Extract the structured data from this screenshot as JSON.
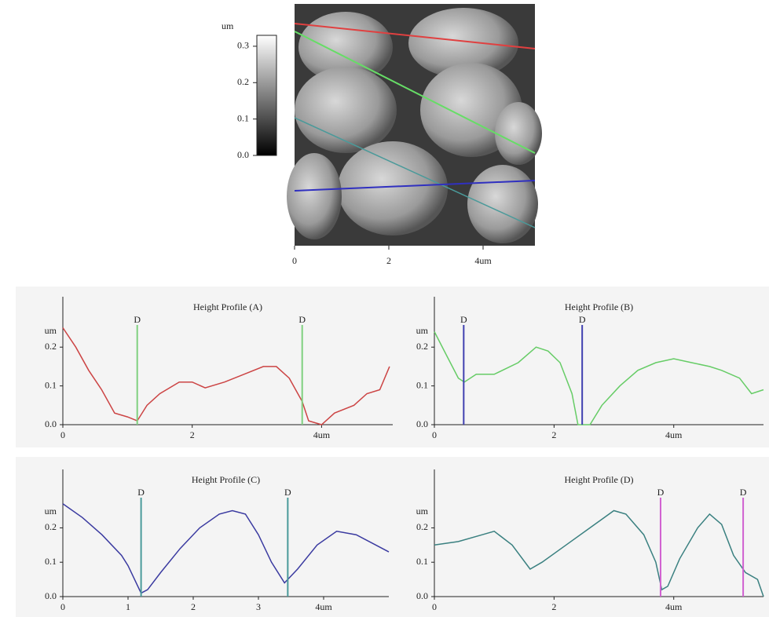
{
  "chart_data": [
    {
      "type": "image",
      "xlim": [
        0,
        5.1
      ],
      "xticks": [
        0,
        2,
        {
          "value": 4,
          "label": "4um"
        }
      ],
      "colorbar": {
        "label": "um",
        "ylim": [
          0,
          0.33
        ],
        "yticks": [
          {
            "value": 0,
            "label": "0.0"
          },
          {
            "value": 0.1,
            "label": "0.1"
          },
          {
            "value": 0.2,
            "label": "0.2"
          },
          {
            "value": 0.3,
            "label": "0.3"
          }
        ]
      }
    },
    {
      "type": "line",
      "title": "Height Profile (A)",
      "y_label": "um",
      "color": "#cc4444",
      "xlim": [
        0,
        5.1
      ],
      "ylim": [
        0,
        0.33
      ],
      "xticks": [
        0,
        2,
        {
          "value": 4,
          "label": "4um"
        }
      ],
      "yticks": [
        {
          "value": 0,
          "label": "0.0"
        },
        {
          "value": 0.1,
          "label": "0.1"
        },
        {
          "value": 0.2,
          "label": "0.2"
        }
      ],
      "x": [
        0,
        0.2,
        0.4,
        0.6,
        0.8,
        1.0,
        1.15,
        1.3,
        1.5,
        1.8,
        2.0,
        2.2,
        2.5,
        2.8,
        3.1,
        3.3,
        3.5,
        3.7,
        3.8,
        4.0,
        4.2,
        4.5,
        4.7,
        4.9,
        5.05
      ],
      "values": [
        0.25,
        0.2,
        0.14,
        0.09,
        0.03,
        0.02,
        0.01,
        0.05,
        0.08,
        0.11,
        0.11,
        0.095,
        0.11,
        0.13,
        0.15,
        0.15,
        0.12,
        0.06,
        0.01,
        0.0,
        0.03,
        0.05,
        0.08,
        0.09,
        0.15
      ],
      "markers": [
        {
          "label": "D",
          "x": 1.15,
          "color": "#7fd07f"
        },
        {
          "label": "D",
          "x": 3.7,
          "color": "#7fd07f"
        }
      ]
    },
    {
      "type": "line",
      "title": "Height Profile (B)",
      "y_label": "um",
      "color": "#66cc66",
      "xlim": [
        0,
        5.5
      ],
      "ylim": [
        0,
        0.33
      ],
      "xticks": [
        0,
        2,
        {
          "value": 4,
          "label": "4um"
        }
      ],
      "yticks": [
        {
          "value": 0,
          "label": "0.0"
        },
        {
          "value": 0.1,
          "label": "0.1"
        },
        {
          "value": 0.2,
          "label": "0.2"
        }
      ],
      "x": [
        0,
        0.2,
        0.4,
        0.5,
        0.7,
        1.0,
        1.4,
        1.7,
        1.9,
        2.1,
        2.3,
        2.4,
        2.6,
        2.8,
        3.1,
        3.4,
        3.7,
        4.0,
        4.3,
        4.6,
        4.8,
        5.1,
        5.3,
        5.5
      ],
      "values": [
        0.24,
        0.18,
        0.12,
        0.11,
        0.13,
        0.13,
        0.16,
        0.2,
        0.19,
        0.16,
        0.08,
        0.0,
        0.0,
        0.05,
        0.1,
        0.14,
        0.16,
        0.17,
        0.16,
        0.15,
        0.14,
        0.12,
        0.08,
        0.09
      ],
      "markers": [
        {
          "label": "D",
          "x": 0.49,
          "color": "#4040b0"
        },
        {
          "label": "D",
          "x": 2.47,
          "color": "#4040b0"
        }
      ]
    },
    {
      "type": "line",
      "title": "Height Profile (C)",
      "y_label": "um",
      "color": "#3a3aa0",
      "xlim": [
        0,
        5.0
      ],
      "ylim": [
        0,
        0.37
      ],
      "xticks": [
        0,
        1,
        2,
        3,
        {
          "value": 4,
          "label": "4um"
        }
      ],
      "yticks": [
        {
          "value": 0,
          "label": "0.0"
        },
        {
          "value": 0.1,
          "label": "0.1"
        },
        {
          "value": 0.2,
          "label": "0.2"
        }
      ],
      "x": [
        0,
        0.3,
        0.6,
        0.9,
        1.0,
        1.2,
        1.3,
        1.5,
        1.8,
        2.1,
        2.4,
        2.6,
        2.8,
        3.0,
        3.2,
        3.4,
        3.6,
        3.9,
        4.2,
        4.5,
        4.8,
        5.0
      ],
      "values": [
        0.27,
        0.23,
        0.18,
        0.12,
        0.09,
        0.01,
        0.02,
        0.07,
        0.14,
        0.2,
        0.24,
        0.25,
        0.24,
        0.18,
        0.1,
        0.04,
        0.08,
        0.15,
        0.19,
        0.18,
        0.15,
        0.13
      ],
      "markers": [
        {
          "label": "D",
          "x": 1.2,
          "color": "#4a9a9a"
        },
        {
          "label": "D",
          "x": 3.45,
          "color": "#4a9a9a"
        }
      ]
    },
    {
      "type": "line",
      "title": "Height Profile (D)",
      "y_label": "um",
      "color": "#3a8080",
      "xlim": [
        0,
        5.5
      ],
      "ylim": [
        0,
        0.37
      ],
      "xticks": [
        0,
        2,
        {
          "value": 4,
          "label": "4um"
        }
      ],
      "yticks": [
        {
          "value": 0,
          "label": "0.0"
        },
        {
          "value": 0.1,
          "label": "0.1"
        },
        {
          "value": 0.2,
          "label": "0.2"
        }
      ],
      "x": [
        0,
        0.4,
        0.8,
        1.0,
        1.3,
        1.6,
        1.8,
        2.2,
        2.6,
        3.0,
        3.2,
        3.5,
        3.7,
        3.8,
        3.9,
        4.1,
        4.4,
        4.6,
        4.8,
        5.0,
        5.2,
        5.4,
        5.5
      ],
      "values": [
        0.15,
        0.16,
        0.18,
        0.19,
        0.15,
        0.08,
        0.1,
        0.15,
        0.2,
        0.25,
        0.24,
        0.18,
        0.1,
        0.02,
        0.03,
        0.11,
        0.2,
        0.24,
        0.21,
        0.12,
        0.07,
        0.05,
        0.0
      ],
      "markers": [
        {
          "label": "D",
          "x": 3.78,
          "color": "#d060d0"
        },
        {
          "label": "D",
          "x": 5.16,
          "color": "#d060d0"
        }
      ]
    }
  ]
}
